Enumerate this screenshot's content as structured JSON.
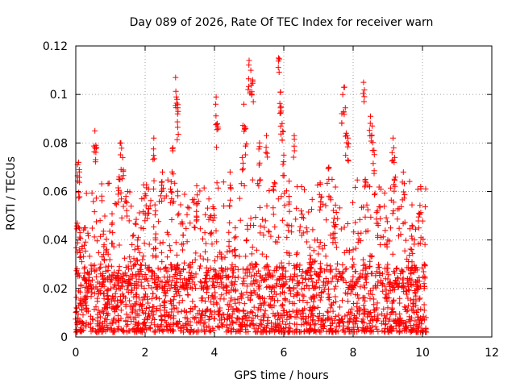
{
  "chart_data": {
    "type": "scatter",
    "title": "Day 089 of 2026, Rate Of TEC Index for receiver warn",
    "xlabel": "GPS time / hours",
    "ylabel": "ROTI / TECUs",
    "xlim": [
      0,
      12
    ],
    "ylim": [
      0,
      0.12
    ],
    "x_ticks": [
      0,
      2,
      4,
      6,
      8,
      10,
      12
    ],
    "y_ticks": [
      0,
      0.02,
      0.04,
      0.06,
      0.08,
      0.1,
      0.12
    ],
    "x_tick_labels": [
      "0",
      "2",
      "4",
      "6",
      "8",
      "10",
      "12"
    ],
    "y_tick_labels": [
      "0",
      "0.02",
      "0.04",
      "0.06",
      "0.08",
      "0.1",
      "0.12"
    ],
    "grid": true,
    "marker": "+",
    "color": "#ff0000",
    "series": [
      {
        "name": "ROTI",
        "points": [
          [
            0.02,
            0.012
          ],
          [
            0.05,
            0.035
          ],
          [
            0.08,
            0.072
          ],
          [
            0.1,
            0.069
          ],
          [
            0.12,
            0.043
          ],
          [
            0.15,
            0.021
          ],
          [
            0.25,
            0.045
          ],
          [
            0.3,
            0.016
          ],
          [
            0.45,
            0.028
          ],
          [
            0.55,
            0.085
          ],
          [
            0.58,
            0.079
          ],
          [
            0.65,
            0.011
          ],
          [
            0.8,
            0.034
          ],
          [
            0.9,
            0.019
          ],
          [
            1.05,
            0.047
          ],
          [
            1.2,
            0.015
          ],
          [
            1.25,
            0.066
          ],
          [
            1.3,
            0.08
          ],
          [
            1.35,
            0.074
          ],
          [
            1.45,
            0.056
          ],
          [
            1.55,
            0.033
          ],
          [
            1.7,
            0.022
          ],
          [
            1.8,
            0.041
          ],
          [
            1.95,
            0.01
          ],
          [
            2.0,
            0.059
          ],
          [
            2.1,
            0.061
          ],
          [
            2.2,
            0.027
          ],
          [
            2.25,
            0.082
          ],
          [
            2.3,
            0.052
          ],
          [
            2.5,
            0.068
          ],
          [
            2.6,
            0.018
          ],
          [
            2.75,
            0.064
          ],
          [
            2.8,
            0.078
          ],
          [
            2.88,
            0.107
          ],
          [
            2.92,
            0.098
          ],
          [
            2.95,
            0.093
          ],
          [
            3.1,
            0.042
          ],
          [
            3.3,
            0.03
          ],
          [
            3.5,
            0.055
          ],
          [
            3.75,
            0.024
          ],
          [
            3.9,
            0.05
          ],
          [
            4.05,
            0.099
          ],
          [
            4.08,
            0.088
          ],
          [
            4.2,
            0.033
          ],
          [
            4.45,
            0.068
          ],
          [
            4.6,
            0.045
          ],
          [
            4.8,
            0.074
          ],
          [
            4.85,
            0.096
          ],
          [
            4.9,
            0.086
          ],
          [
            5.0,
            0.114
          ],
          [
            5.05,
            0.11
          ],
          [
            5.1,
            0.106
          ],
          [
            5.3,
            0.08
          ],
          [
            5.5,
            0.083
          ],
          [
            5.7,
            0.062
          ],
          [
            5.85,
            0.115
          ],
          [
            5.9,
            0.101
          ],
          [
            5.92,
            0.095
          ],
          [
            5.95,
            0.088
          ],
          [
            6.0,
            0.075
          ],
          [
            6.15,
            0.058
          ],
          [
            6.3,
            0.083
          ],
          [
            6.5,
            0.052
          ],
          [
            6.75,
            0.037
          ],
          [
            7.05,
            0.063
          ],
          [
            7.3,
            0.07
          ],
          [
            7.45,
            0.049
          ],
          [
            7.7,
            0.1
          ],
          [
            7.75,
            0.103
          ],
          [
            7.8,
            0.084
          ],
          [
            7.85,
            0.082
          ],
          [
            8.0,
            0.036
          ],
          [
            8.3,
            0.105
          ],
          [
            8.35,
            0.065
          ],
          [
            8.5,
            0.091
          ],
          [
            8.55,
            0.087
          ],
          [
            8.6,
            0.077
          ],
          [
            8.7,
            0.052
          ],
          [
            9.0,
            0.04
          ],
          [
            9.15,
            0.082
          ],
          [
            9.2,
            0.074
          ],
          [
            9.45,
            0.068
          ],
          [
            9.7,
            0.046
          ],
          [
            9.9,
            0.051
          ],
          [
            9.95,
            0.062
          ],
          [
            10.05,
            0.03
          ],
          [
            10.1,
            0.008
          ]
        ],
        "dense_band": {
          "x_range": [
            0,
            10.1
          ],
          "y_range": [
            0.002,
            0.03
          ],
          "description": "dense cluster of points throughout the observed interval"
        }
      }
    ]
  }
}
